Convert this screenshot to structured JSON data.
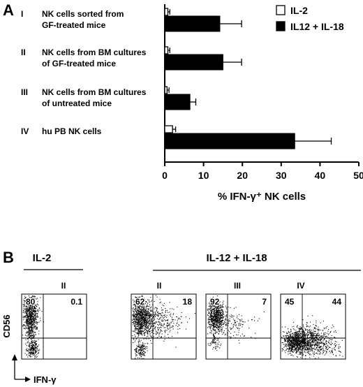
{
  "panel_a_label": "A",
  "panel_b_label": "B",
  "chart_data": [
    {
      "type": "bar",
      "orientation": "horizontal",
      "categories": [
        {
          "roman": "I",
          "line1": "NK cells sorted from",
          "line2": "GF-treated mice"
        },
        {
          "roman": "II",
          "line1": "NK cells from BM cultures",
          "line2": "of GF-treated mice"
        },
        {
          "roman": "III",
          "line1": "NK cells from BM cultures",
          "line2": "of untreated mice"
        },
        {
          "roman": "IV",
          "line1": "hu PB NK cells",
          "line2": ""
        }
      ],
      "series": [
        {
          "name": "IL-2",
          "color": "#ffffff",
          "values": [
            0.8,
            0.8,
            0.6,
            2.0
          ],
          "errors": [
            0.5,
            0.5,
            0.5,
            0.8
          ]
        },
        {
          "name": "IL12 + IL-18",
          "color": "#000000",
          "values": [
            14.2,
            15.0,
            6.5,
            33.5
          ],
          "errors": [
            5.6,
            4.8,
            1.5,
            9.4
          ]
        }
      ],
      "xlabel": "% IFN-γ⁺ NK cells",
      "xlim": [
        0,
        50
      ],
      "xticks": [
        "0",
        "10",
        "20",
        "30",
        "40",
        "50"
      ]
    },
    {
      "type": "scatter",
      "description_groups": {
        "il2": "IL-2",
        "il12": "IL-12 + IL-18"
      },
      "y_axis_label": "CD56",
      "x_axis_label": "IFN-γ",
      "plots": [
        {
          "label": "II",
          "q_left": "80",
          "q_right": "0.1",
          "pattern": "il2"
        },
        {
          "label": "II",
          "q_left": "62",
          "q_right": "18",
          "pattern": "spread"
        },
        {
          "label": "III",
          "q_left": "92",
          "q_right": "7",
          "pattern": "moderate"
        },
        {
          "label": "IV",
          "q_left": "45",
          "q_right": "44",
          "pattern": "wide"
        }
      ]
    }
  ]
}
